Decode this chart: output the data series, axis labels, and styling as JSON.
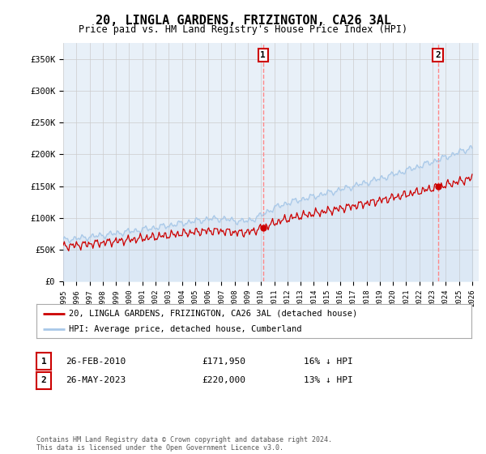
{
  "title": "20, LINGLA GARDENS, FRIZINGTON, CA26 3AL",
  "subtitle": "Price paid vs. HM Land Registry's House Price Index (HPI)",
  "ylabel_ticks": [
    "£0",
    "£50K",
    "£100K",
    "£150K",
    "£200K",
    "£250K",
    "£300K",
    "£350K"
  ],
  "ylim": [
    0,
    375000
  ],
  "xlim_start": 1995.0,
  "xlim_end": 2026.5,
  "sale1": {
    "date_num": 2010.15,
    "price": 171950,
    "label": "1"
  },
  "sale2": {
    "date_num": 2023.4,
    "price": 220000,
    "label": "2"
  },
  "hpi_color": "#a8c8e8",
  "price_color": "#cc0000",
  "vline_color": "#ff8888",
  "grid_color": "#cccccc",
  "legend_label_red": "20, LINGLA GARDENS, FRIZINGTON, CA26 3AL (detached house)",
  "legend_label_blue": "HPI: Average price, detached house, Cumberland",
  "table_row1": [
    "1",
    "26-FEB-2010",
    "£171,950",
    "16% ↓ HPI"
  ],
  "table_row2": [
    "2",
    "26-MAY-2023",
    "£220,000",
    "13% ↓ HPI"
  ],
  "footer": "Contains HM Land Registry data © Crown copyright and database right 2024.\nThis data is licensed under the Open Government Licence v3.0.",
  "bg_color": "#ffffff",
  "plot_bg_color": "#e8f0f8"
}
